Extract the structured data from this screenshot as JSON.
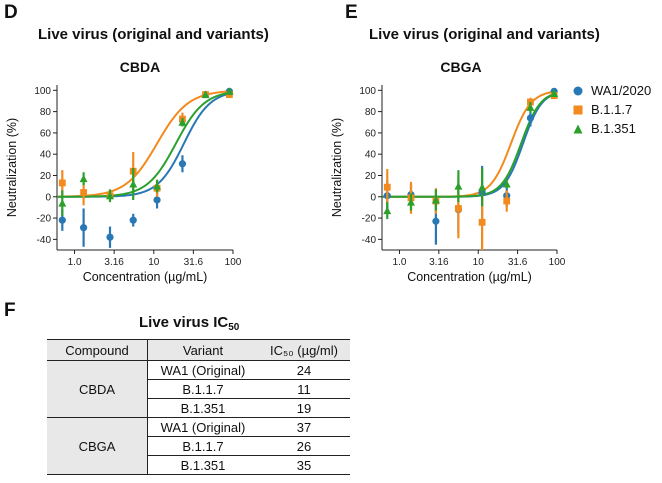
{
  "panels": {
    "d": {
      "letter": "D",
      "heading": "Live virus (original and variants)"
    },
    "e": {
      "letter": "E",
      "heading": "Live virus (original and variants)"
    },
    "f": {
      "letter": "F",
      "heading": "Live virus IC",
      "heading_sub": "50"
    }
  },
  "legend": [
    {
      "label": "WA1/2020",
      "color": "#2878b5",
      "marker": "circle"
    },
    {
      "label": "B.1.1.7",
      "color": "#f28a1e",
      "marker": "square"
    },
    {
      "label": "B.1.351",
      "color": "#2ca02c",
      "marker": "triangle"
    }
  ],
  "chart_data": [
    {
      "type": "line",
      "title": "CBDA",
      "xlabel": "Concentration (µg/mL)",
      "ylabel": "Neutralization (%)",
      "x_scale": "log",
      "xlim": [
        0.6,
        100
      ],
      "ylim": [
        -50,
        105
      ],
      "x_ticks": [
        1.0,
        3.16,
        10,
        31.6,
        100
      ],
      "x_tick_labels": [
        "1.0",
        "3.16",
        "10",
        "31.6",
        "100"
      ],
      "y_ticks": [
        -40,
        -20,
        0,
        20,
        40,
        60,
        80,
        100
      ],
      "grid": false,
      "series": [
        {
          "name": "WA1/2020",
          "color": "#2878b5",
          "marker": "circle",
          "ic50": 24,
          "hill": 2.6,
          "x": [
            0.7,
            1.3,
            2.8,
            5.5,
            11,
            23,
            45,
            90
          ],
          "y": [
            -22,
            -29,
            -38,
            -22,
            -3,
            31,
            96,
            99
          ],
          "err": [
            10,
            18,
            10,
            6,
            8,
            8,
            3,
            3
          ]
        },
        {
          "name": "B.1.1.7",
          "color": "#f28a1e",
          "marker": "square",
          "ic50": 11,
          "hill": 2.2,
          "x": [
            0.7,
            1.3,
            2.8,
            5.5,
            11,
            23,
            45,
            90
          ],
          "y": [
            13,
            4,
            1,
            24,
            8,
            73,
            96,
            96
          ],
          "err": [
            12,
            12,
            5,
            18,
            8,
            6,
            3,
            3
          ]
        },
        {
          "name": "B.1.351",
          "color": "#2ca02c",
          "marker": "triangle",
          "ic50": 19,
          "hill": 2.4,
          "x": [
            0.7,
            1.3,
            2.8,
            5.5,
            11,
            23,
            45,
            90
          ],
          "y": [
            -6,
            17,
            1,
            12,
            10,
            70,
            96,
            99
          ],
          "err": [
            12,
            6,
            6,
            15,
            6,
            4,
            3,
            3
          ]
        }
      ]
    },
    {
      "type": "line",
      "title": "CBGA",
      "xlabel": "Concentration (µg/mL)",
      "ylabel": "Neutralization (%)",
      "x_scale": "log",
      "xlim": [
        0.6,
        100
      ],
      "ylim": [
        -50,
        105
      ],
      "x_ticks": [
        1.0,
        3.16,
        10,
        31.6,
        100
      ],
      "x_tick_labels": [
        "1.0",
        "3.16",
        "10",
        "31.6",
        "100"
      ],
      "y_ticks": [
        -40,
        -20,
        0,
        20,
        40,
        60,
        80,
        100
      ],
      "grid": false,
      "series": [
        {
          "name": "WA1/2020",
          "color": "#2878b5",
          "marker": "circle",
          "ic50": 37,
          "hill": 3.6,
          "x": [
            0.7,
            1.4,
            2.9,
            5.6,
            11.2,
            23,
            46,
            92
          ],
          "y": [
            1,
            2,
            -23,
            -12,
            4,
            1,
            74,
            99
          ],
          "err": [
            14,
            10,
            22,
            22,
            25,
            10,
            8,
            3
          ]
        },
        {
          "name": "B.1.1.7",
          "color": "#f28a1e",
          "marker": "square",
          "ic50": 26,
          "hill": 3.4,
          "x": [
            0.7,
            1.4,
            2.9,
            5.6,
            11.2,
            23,
            46,
            92
          ],
          "y": [
            9,
            -1,
            -4,
            -11,
            -24,
            -4,
            89,
            95
          ],
          "err": [
            17,
            15,
            12,
            28,
            26,
            10,
            4,
            3
          ]
        },
        {
          "name": "B.1.351",
          "color": "#2ca02c",
          "marker": "triangle",
          "ic50": 35,
          "hill": 3.5,
          "x": [
            0.7,
            1.4,
            2.9,
            5.6,
            11.2,
            23,
            46,
            92
          ],
          "y": [
            -13,
            -5,
            -3,
            10,
            9,
            12,
            84,
            97
          ],
          "err": [
            8,
            8,
            10,
            15,
            18,
            4,
            5,
            3
          ]
        }
      ]
    }
  ],
  "table": {
    "headers": [
      "Compound",
      "Variant",
      "IC₅₀ (µg/ml)"
    ],
    "groups": [
      {
        "compound": "CBDA",
        "rows": [
          {
            "variant": "WA1 (Original)",
            "value": "24"
          },
          {
            "variant": "B.1.1.7",
            "value": "11"
          },
          {
            "variant": "B.1.351",
            "value": "19"
          }
        ]
      },
      {
        "compound": "CBGA",
        "rows": [
          {
            "variant": "WA1 (Original)",
            "value": "37"
          },
          {
            "variant": "B.1.1.7",
            "value": "26"
          },
          {
            "variant": "B.1.351",
            "value": "35"
          }
        ]
      }
    ]
  }
}
